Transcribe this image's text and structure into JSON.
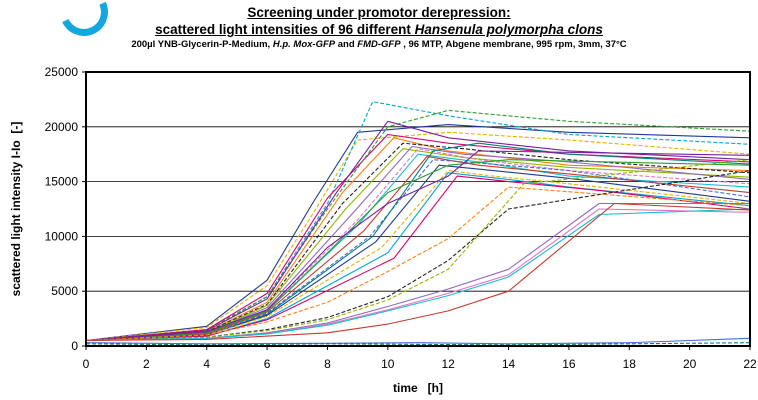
{
  "header": {
    "line1": "Screening under promotor derepression:",
    "line2_a": "scattered light intensities of 96 different ",
    "line2_b": "Hansenula polymorpha clons",
    "line3_a": "200µl YNB-Glycerin-P-Medium, ",
    "line3_b": "H.p. Mox-GFP",
    "line3_c": "  and ",
    "line3_d": "FMD-GFP",
    "line3_e": " , 96 MTP, Abgene membrane, 995 rpm, 3mm, 37°C"
  },
  "chart_data": {
    "type": "line",
    "title": "scattered light intensities of 96 different Hansenula polymorpha clons",
    "xlabel": "time   [h]",
    "ylabel": "scattered light intensity I-Io  [-]",
    "xlim": [
      0,
      22
    ],
    "ylim": [
      0,
      25000
    ],
    "xticks": [
      0,
      2,
      4,
      6,
      8,
      10,
      12,
      14,
      16,
      18,
      20,
      22
    ],
    "yticks": [
      0,
      5000,
      10000,
      15000,
      20000,
      25000
    ],
    "grid": "horizontal",
    "legend": "none",
    "palette": [
      "#1f3a93",
      "#e4b200",
      "#00a6d6",
      "#d6006e",
      "#2aa02b",
      "#7a1fa2",
      "#ff7f0e",
      "#222222",
      "#8fb800",
      "#9467bd",
      "#e377c2",
      "#17becf",
      "#c83b2b",
      "#4b6cd6",
      "#008080"
    ],
    "series": [
      {
        "x": [
          0,
          4,
          6,
          7.5,
          9,
          12,
          16,
          22
        ],
        "y": [
          500,
          1800,
          6000,
          13000,
          19500,
          20200,
          19500,
          19000
        ],
        "style": "solid"
      },
      {
        "x": [
          0,
          4,
          6,
          7.5,
          9,
          12,
          16,
          22
        ],
        "y": [
          500,
          1700,
          5500,
          12000,
          18800,
          19500,
          18800,
          17500
        ],
        "style": "dashed"
      },
      {
        "x": [
          0,
          4,
          6,
          8,
          9.5,
          12,
          16,
          22
        ],
        "y": [
          500,
          1500,
          4500,
          13000,
          22300,
          21000,
          19300,
          18400
        ],
        "style": "dashed"
      },
      {
        "x": [
          0,
          4,
          6,
          8,
          10,
          12,
          16,
          22
        ],
        "y": [
          500,
          1500,
          4800,
          13500,
          19300,
          18500,
          17500,
          16800
        ],
        "style": "solid"
      },
      {
        "x": [
          0,
          4,
          6,
          8,
          10,
          12,
          16,
          22
        ],
        "y": [
          500,
          1400,
          4500,
          12500,
          20000,
          21500,
          20500,
          19600
        ],
        "style": "dashed"
      },
      {
        "x": [
          0,
          4,
          6,
          8.3,
          10,
          12,
          16,
          22
        ],
        "y": [
          500,
          1400,
          4300,
          14000,
          20500,
          19000,
          17800,
          17000
        ],
        "style": "solid"
      },
      {
        "x": [
          0,
          4,
          6,
          8.5,
          10.2,
          12,
          16,
          22
        ],
        "y": [
          500,
          1300,
          4000,
          14000,
          19000,
          17800,
          16500,
          16000
        ],
        "style": "solid"
      },
      {
        "x": [
          0,
          4,
          6,
          8.5,
          10.5,
          12.5,
          16,
          22
        ],
        "y": [
          500,
          1300,
          3800,
          13000,
          18500,
          18000,
          17000,
          15800
        ],
        "style": "dashed"
      },
      {
        "x": [
          0,
          4,
          6,
          8.6,
          10.5,
          12.5,
          16,
          22
        ],
        "y": [
          500,
          1200,
          3700,
          12500,
          18000,
          17200,
          16300,
          15400
        ],
        "style": "solid"
      },
      {
        "x": [
          0,
          4,
          6,
          8.8,
          10.8,
          12.5,
          16,
          22
        ],
        "y": [
          500,
          1200,
          3500,
          12000,
          18200,
          17500,
          16800,
          15200
        ],
        "style": "solid"
      },
      {
        "x": [
          0,
          4,
          6,
          9,
          11,
          13,
          16,
          22
        ],
        "y": [
          500,
          1100,
          3300,
          11500,
          18000,
          17000,
          16000,
          14800
        ],
        "style": "dashed"
      },
      {
        "x": [
          0,
          4,
          6,
          9,
          11,
          13,
          16,
          22
        ],
        "y": [
          500,
          1100,
          3200,
          11000,
          17500,
          16800,
          15500,
          14500
        ],
        "style": "solid"
      },
      {
        "x": [
          0,
          4,
          6,
          9.2,
          11.3,
          13,
          16,
          22
        ],
        "y": [
          500,
          1100,
          3100,
          10500,
          17300,
          16500,
          15700,
          14000
        ],
        "style": "solid"
      },
      {
        "x": [
          0,
          4,
          6,
          9.4,
          11.5,
          13,
          16,
          22
        ],
        "y": [
          500,
          1000,
          3000,
          10000,
          17000,
          16700,
          16000,
          13600
        ],
        "style": "dashed"
      },
      {
        "x": [
          0,
          4,
          6,
          9.5,
          11.5,
          13,
          16,
          22
        ],
        "y": [
          500,
          1000,
          2900,
          10000,
          17800,
          18500,
          17500,
          16600
        ],
        "style": "solid"
      },
      {
        "x": [
          0,
          4,
          6,
          9.6,
          11.7,
          13.5,
          16,
          22
        ],
        "y": [
          500,
          1000,
          2800,
          9500,
          16500,
          16000,
          15300,
          13200
        ],
        "style": "solid"
      },
      {
        "x": [
          0,
          4,
          6,
          9.8,
          12,
          13.5,
          16,
          22
        ],
        "y": [
          500,
          1000,
          2700,
          9000,
          16000,
          15500,
          14800,
          13000
        ],
        "style": "dashed"
      },
      {
        "x": [
          0,
          4,
          6,
          10,
          12,
          14,
          16,
          22
        ],
        "y": [
          500,
          900,
          2500,
          8500,
          15800,
          15200,
          14500,
          12800
        ],
        "style": "solid"
      },
      {
        "x": [
          0,
          4,
          6,
          10.2,
          12.3,
          14,
          17,
          22
        ],
        "y": [
          500,
          900,
          2400,
          8000,
          15500,
          15000,
          14200,
          12500
        ],
        "style": "solid"
      },
      {
        "x": [
          0,
          4,
          6,
          8,
          10,
          12,
          14,
          22
        ],
        "y": [
          500,
          1200,
          3200,
          8500,
          14000,
          16500,
          17000,
          16500
        ],
        "style": "solid"
      },
      {
        "x": [
          0,
          4,
          6,
          8,
          10,
          12,
          13,
          22
        ],
        "y": [
          500,
          1300,
          3300,
          9000,
          13000,
          15500,
          17800,
          17400
        ],
        "style": "solid"
      },
      {
        "x": [
          0,
          4,
          6,
          8,
          10,
          12,
          14,
          22
        ],
        "y": [
          500,
          1000,
          2200,
          4000,
          6800,
          9800,
          14500,
          12800
        ],
        "style": "dashed"
      },
      {
        "x": [
          0,
          4,
          6,
          8,
          10,
          12,
          14,
          22
        ],
        "y": [
          500,
          800,
          1500,
          2600,
          4500,
          7800,
          12500,
          16000
        ],
        "style": "dashed"
      },
      {
        "x": [
          0,
          4,
          6,
          8,
          10,
          12,
          14.5,
          22
        ],
        "y": [
          500,
          800,
          1400,
          2400,
          4200,
          7000,
          14800,
          17000
        ],
        "style": "dashed"
      },
      {
        "x": [
          0,
          4,
          6,
          8,
          10,
          12,
          14,
          17,
          22
        ],
        "y": [
          500,
          700,
          1200,
          2100,
          3600,
          5200,
          7000,
          13000,
          13000
        ],
        "style": "solid"
      },
      {
        "x": [
          0,
          4,
          6,
          8,
          10,
          12,
          14,
          17,
          22
        ],
        "y": [
          500,
          700,
          1100,
          2000,
          3300,
          4800,
          6500,
          12500,
          12200
        ],
        "style": "solid"
      },
      {
        "x": [
          0,
          4,
          6,
          8,
          10,
          12,
          14,
          17,
          22
        ],
        "y": [
          500,
          700,
          1100,
          1900,
          3200,
          4600,
          6300,
          12000,
          12500
        ],
        "style": "solid"
      },
      {
        "x": [
          0,
          4,
          8,
          10,
          12,
          14,
          17.5,
          22
        ],
        "y": [
          500,
          600,
          1200,
          2000,
          3200,
          5000,
          13000,
          12400
        ],
        "style": "solid"
      },
      {
        "x": [
          0,
          4,
          8,
          11,
          14,
          18,
          22
        ],
        "y": [
          300,
          200,
          250,
          300,
          200,
          300,
          700
        ],
        "style": "solid"
      },
      {
        "x": [
          0,
          4,
          8,
          11,
          14,
          18,
          22
        ],
        "y": [
          200,
          100,
          200,
          150,
          100,
          200,
          300
        ],
        "style": "dashed"
      }
    ]
  }
}
